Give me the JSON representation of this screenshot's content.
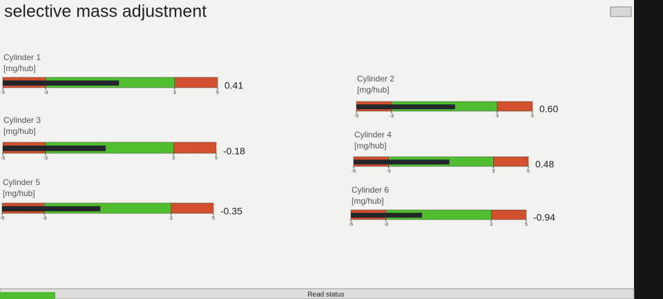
{
  "window": {
    "title": "selective mass adjustment",
    "status": "Read status"
  },
  "scale": {
    "xlim": [
      -5,
      5
    ],
    "xticks": [
      -5,
      -3,
      3,
      5
    ],
    "zones": [
      {
        "from": -5,
        "to": -3,
        "color": "#d2502e"
      },
      {
        "from": -3,
        "to": 3,
        "color": "#4fbf2f"
      },
      {
        "from": 3,
        "to": 5,
        "color": "#d2502e"
      }
    ],
    "marker_color": "#23262a"
  },
  "gauges": [
    {
      "label": "Cylinder 1",
      "unit": "[mg/hub]",
      "value": 0.41
    },
    {
      "label": "Cylinder 2",
      "unit": "[mg/hub]",
      "value": 0.6,
      "value_label": "0.60"
    },
    {
      "label": "Cylinder 3",
      "unit": "[mg/hub]",
      "value": -0.18
    },
    {
      "label": "Cylinder 4",
      "unit": "[mg/hub]",
      "value": 0.48
    },
    {
      "label": "Cylinder 5",
      "unit": "[mg/hub]",
      "value": -0.35
    },
    {
      "label": "Cylinder 6",
      "unit": "[mg/hub]",
      "value": -0.94
    }
  ]
}
